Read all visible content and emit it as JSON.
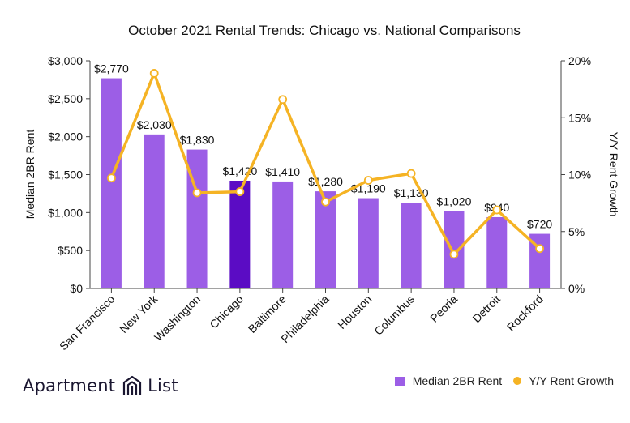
{
  "chart_data": {
    "type": "bar",
    "title": "October 2021 Rental Trends: Chicago vs. National Comparisons",
    "ylabel": "Median 2BR Rent",
    "y2label": "Y/Y Rent Growth",
    "categories": [
      "San Francisco",
      "New York",
      "Washington",
      "Chicago",
      "Baltimore",
      "Philadelphia",
      "Houston",
      "Columbus",
      "Peoria",
      "Detroit",
      "Rockford"
    ],
    "series": [
      {
        "name": "Median 2BR Rent",
        "type": "bar",
        "axis": "left",
        "values": [
          2770,
          2030,
          1830,
          1420,
          1410,
          1280,
          1190,
          1130,
          1020,
          940,
          720
        ],
        "labels": [
          "$2,770",
          "$2,030",
          "$1,830",
          "$1,420",
          "$1,410",
          "$1,280",
          "$1,190",
          "$1,130",
          "$1,020",
          "$940",
          "$720"
        ]
      },
      {
        "name": "Y/Y Rent Growth",
        "type": "line",
        "axis": "right",
        "values": [
          9.7,
          18.9,
          8.4,
          8.5,
          16.6,
          7.6,
          9.5,
          10.1,
          3.0,
          6.9,
          3.5
        ]
      }
    ],
    "ylim": [
      0,
      3000
    ],
    "y_ticks": [
      "$0",
      "$500",
      "$1,000",
      "$1,500",
      "$2,000",
      "$2,500",
      "$3,000"
    ],
    "y2lim": [
      0,
      20
    ],
    "y2_ticks": [
      "0%",
      "5%",
      "10%",
      "15%",
      "20%"
    ],
    "highlight_category": "Chicago",
    "grid": false,
    "legend_position": "bottom-right",
    "colors": {
      "bar": "#9c5ee6",
      "bar_highlight": "#5b0cc4",
      "line": "#f5b324",
      "marker_fill": "#ffffff",
      "axis": "#444444",
      "text": "#111111"
    }
  },
  "brand": {
    "word1": "Apartment",
    "word2": "List",
    "logo_icon": "apartment-list-logo-icon"
  },
  "legend": {
    "bar_label": "Median 2BR Rent",
    "line_label": "Y/Y Rent Growth"
  }
}
